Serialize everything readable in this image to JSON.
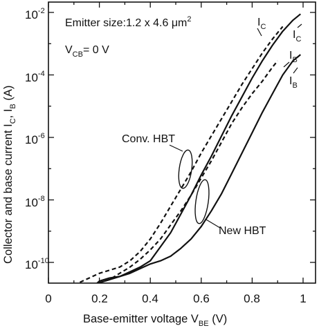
{
  "chart_data": {
    "type": "line",
    "title": "",
    "xlabel": {
      "main": "Base-emitter voltage  V",
      "sub": "BE",
      "unit": "  (V)"
    },
    "ylabel": {
      "main": "Collector and base current  I",
      "sub1": "C",
      "mid": ", I",
      "sub2": "B",
      "unit": "  (A)"
    },
    "x_ticks": [
      "0",
      "0.2",
      "0.4",
      "0.6",
      "0.8",
      "1"
    ],
    "y_ticks": [
      {
        "base": "10",
        "exp": "-10"
      },
      {
        "base": "10",
        "exp": "-8"
      },
      {
        "base": "10",
        "exp": "-6"
      },
      {
        "base": "10",
        "exp": "-4"
      },
      {
        "base": "10",
        "exp": "-2"
      }
    ],
    "xlim": [
      0,
      1.05
    ],
    "ylim_log10": [
      -11,
      -2
    ],
    "yscale": "log",
    "annotations": {
      "emitter": {
        "text": "Emitter size:1.2 x 4.6 μm",
        "sup": "2"
      },
      "vcb": {
        "pre": "V",
        "sub": "CB",
        "post": "= 0 V"
      },
      "conv": "Conv. HBT",
      "new": "New HBT",
      "conv_ic": {
        "main": "I",
        "sub": "C"
      },
      "conv_ib": {
        "main": "I",
        "sub": "B"
      },
      "new_ic": {
        "main": "I",
        "sub": "C"
      },
      "new_ib": {
        "main": "I",
        "sub": "B"
      }
    },
    "series": [
      {
        "device": "Conv. HBT",
        "current": "IC",
        "style": "dashed",
        "x": [
          0.08,
          0.12,
          0.16,
          0.2,
          0.24,
          0.28,
          0.32,
          0.36,
          0.4,
          0.44,
          0.48,
          0.52,
          0.56,
          0.6,
          0.64,
          0.68,
          0.72,
          0.76,
          0.8,
          0.84,
          0.88,
          0.92
        ],
        "log10_y": [
          -10.9,
          -10.65,
          -10.5,
          -10.35,
          -10.25,
          -10.15,
          -9.95,
          -9.65,
          -9.25,
          -8.75,
          -8.2,
          -7.65,
          -7.1,
          -6.5,
          -5.95,
          -5.4,
          -4.85,
          -4.3,
          -3.8,
          -3.3,
          -2.85,
          -2.45
        ]
      },
      {
        "device": "Conv. HBT",
        "current": "IB",
        "style": "dashed",
        "x": [
          0.12,
          0.16,
          0.2,
          0.24,
          0.28,
          0.32,
          0.36,
          0.4,
          0.44,
          0.48,
          0.52,
          0.56,
          0.6,
          0.64,
          0.68,
          0.72,
          0.76,
          0.8,
          0.84,
          0.88,
          0.9
        ],
        "log10_y": [
          -10.85,
          -10.75,
          -10.65,
          -10.55,
          -10.35,
          -10.15,
          -9.9,
          -9.6,
          -9.25,
          -8.8,
          -8.35,
          -7.85,
          -7.3,
          -6.75,
          -6.15,
          -5.55,
          -5.05,
          -4.6,
          -4.2,
          -3.75,
          -3.55
        ]
      },
      {
        "device": "New HBT",
        "current": "IC",
        "style": "solid",
        "x": [
          0.12,
          0.14,
          0.16,
          0.18,
          0.2,
          0.24,
          0.28,
          0.32,
          0.36,
          0.4,
          0.44,
          0.48,
          0.52,
          0.56,
          0.6,
          0.64,
          0.68,
          0.72,
          0.76,
          0.8,
          0.84,
          0.88,
          0.92,
          0.96,
          0.99
        ],
        "log10_y": [
          -10.95,
          -10.85,
          -10.8,
          -10.75,
          -10.6,
          -10.5,
          -10.45,
          -10.3,
          -10.15,
          -9.95,
          -9.5,
          -9.05,
          -8.45,
          -7.85,
          -7.2,
          -6.6,
          -5.95,
          -5.3,
          -4.7,
          -4.1,
          -3.55,
          -3.05,
          -2.6,
          -2.25,
          -2.05
        ]
      },
      {
        "device": "New HBT",
        "current": "IB",
        "style": "solid",
        "x": [
          0.12,
          0.14,
          0.16,
          0.18,
          0.2,
          0.24,
          0.28,
          0.32,
          0.36,
          0.4,
          0.44,
          0.48,
          0.52,
          0.56,
          0.6,
          0.64,
          0.68,
          0.72,
          0.76,
          0.8,
          0.84,
          0.88,
          0.92,
          0.96,
          0.99
        ],
        "log10_y": [
          -10.95,
          -10.85,
          -10.8,
          -10.75,
          -10.65,
          -10.55,
          -10.45,
          -10.35,
          -10.2,
          -10.05,
          -9.95,
          -9.8,
          -9.55,
          -9.25,
          -8.85,
          -8.35,
          -7.8,
          -7.15,
          -6.5,
          -5.85,
          -5.2,
          -4.6,
          -4.0,
          -3.55,
          -3.35
        ]
      }
    ]
  }
}
